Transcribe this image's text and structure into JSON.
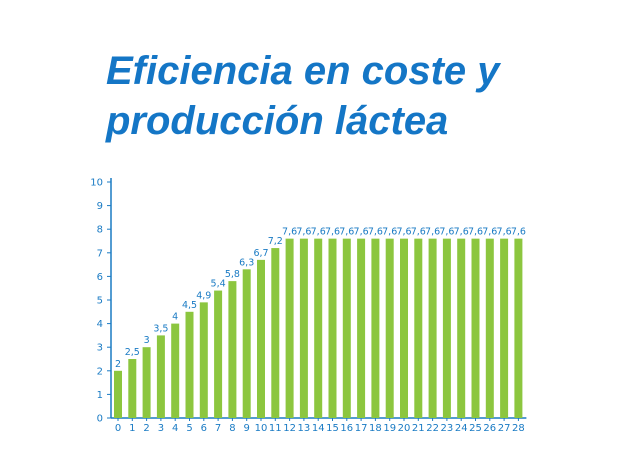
{
  "title_lines": [
    "Eficiencia en coste y",
    "producción láctea"
  ],
  "colors": {
    "bar": "#8cc63f",
    "axis": "#1a7bc4",
    "title": "#1476c6"
  },
  "chart_data": {
    "type": "bar",
    "title": "Eficiencia en coste y producción láctea",
    "xlabel": "",
    "ylabel": "",
    "categories": [
      "0",
      "1",
      "2",
      "3",
      "4",
      "5",
      "6",
      "7",
      "8",
      "9",
      "10",
      "11",
      "12",
      "13",
      "14",
      "15",
      "16",
      "17",
      "18",
      "19",
      "20",
      "21",
      "22",
      "23",
      "24",
      "25",
      "26",
      "27",
      "28"
    ],
    "values": [
      2,
      2.5,
      3,
      3.5,
      4,
      4.5,
      4.9,
      5.4,
      5.8,
      6.3,
      6.7,
      7.2,
      7.6,
      7.6,
      7.6,
      7.6,
      7.6,
      7.6,
      7.6,
      7.6,
      7.6,
      7.6,
      7.6,
      7.6,
      7.6,
      7.6,
      7.6,
      7.6,
      7.6
    ],
    "data_labels": [
      "2",
      "2,5",
      "3",
      "3,5",
      "4",
      "4,5",
      "4,9",
      "5,4",
      "5,8",
      "6,3",
      "6,7",
      "7,2",
      "7,6",
      "7,6",
      "7,6",
      "7,6",
      "7,6",
      "7,6",
      "7,6",
      "7,6",
      "7,6",
      "7,6",
      "7,6",
      "7,6",
      "7,6",
      "7,6",
      "7,6",
      "7,6",
      "7,6"
    ],
    "yticks": [
      "0",
      "1",
      "2",
      "3",
      "4",
      "5",
      "6",
      "7",
      "8",
      "9",
      "10"
    ],
    "ylim": [
      0,
      10
    ],
    "grid": false,
    "legend": "none"
  }
}
